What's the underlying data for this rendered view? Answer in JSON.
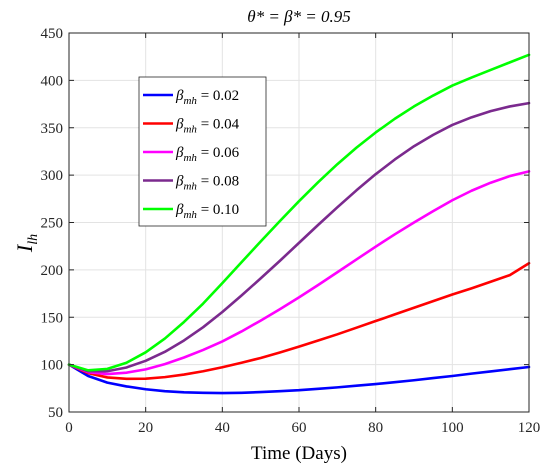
{
  "chart_data": {
    "type": "line",
    "title": "θ* = β* = 0.95",
    "xlabel": "Time (Days)",
    "ylabel_main": "I",
    "ylabel_sub": "lh",
    "xlim": [
      0,
      120
    ],
    "ylim": [
      50,
      450
    ],
    "xticks": [
      0,
      20,
      40,
      60,
      80,
      100,
      120
    ],
    "yticks": [
      50,
      100,
      150,
      200,
      250,
      300,
      350,
      400,
      450
    ],
    "grid": true,
    "legend_position": "top-left",
    "series": [
      {
        "name": "0.02",
        "color": "#0000ff",
        "x": [
          0,
          5,
          10,
          15,
          20,
          25,
          30,
          35,
          40,
          45,
          50,
          55,
          60,
          65,
          70,
          75,
          80,
          85,
          90,
          95,
          100,
          105,
          110,
          115,
          120
        ],
        "y": [
          100,
          88,
          81,
          77,
          74,
          72,
          70.8,
          70.2,
          70,
          70.3,
          71,
          72,
          73,
          74.5,
          76,
          77.8,
          79.5,
          81.5,
          83.5,
          85.8,
          88,
          90.5,
          92.8,
          95.2,
          97.5
        ]
      },
      {
        "name": "0.04",
        "color": "#ff0000",
        "x": [
          0,
          5,
          10,
          15,
          20,
          25,
          30,
          35,
          40,
          45,
          50,
          55,
          60,
          65,
          70,
          75,
          80,
          85,
          90,
          95,
          100,
          105,
          110,
          115,
          120
        ],
        "y": [
          100,
          91,
          86.5,
          85,
          85.2,
          86.8,
          89.5,
          93,
          97.2,
          102,
          107,
          112.8,
          119,
          125.5,
          132,
          139,
          146,
          153,
          160,
          167,
          174,
          180.5,
          187.5,
          194.5,
          207
        ]
      },
      {
        "name": "0.06",
        "color": "#ff00ff",
        "x": [
          0,
          5,
          10,
          15,
          20,
          25,
          30,
          35,
          40,
          45,
          50,
          55,
          60,
          65,
          70,
          75,
          80,
          85,
          90,
          95,
          100,
          105,
          110,
          115,
          120
        ],
        "y": [
          100,
          92,
          90,
          91.5,
          95,
          100.5,
          107.5,
          115.5,
          124.5,
          135,
          146.5,
          158.5,
          171,
          184,
          197.5,
          211,
          224.5,
          237.5,
          250,
          262,
          273.5,
          283.5,
          292,
          299,
          304
        ]
      },
      {
        "name": "0.08",
        "color": "#7b2a8e",
        "x": [
          0,
          5,
          10,
          15,
          20,
          25,
          30,
          35,
          40,
          45,
          50,
          55,
          60,
          65,
          70,
          75,
          80,
          85,
          90,
          95,
          100,
          105,
          110,
          115,
          120
        ],
        "y": [
          100,
          93,
          93,
          97,
          104,
          113.5,
          125.5,
          139.5,
          155.5,
          173,
          191,
          209.5,
          228.5,
          247.5,
          266,
          284,
          301,
          316.5,
          330.5,
          342.5,
          353,
          361,
          367.5,
          372.5,
          376
        ]
      },
      {
        "name": "0.10",
        "color": "#00ff00",
        "x": [
          0,
          5,
          10,
          15,
          20,
          25,
          30,
          35,
          40,
          45,
          50,
          55,
          60,
          65,
          70,
          75,
          80,
          85,
          90,
          95,
          100,
          105,
          110,
          115,
          120
        ],
        "y": [
          100,
          94,
          95.5,
          102,
          113,
          127.5,
          145,
          164.5,
          186,
          208,
          230,
          251.5,
          272.5,
          292.5,
          311.5,
          329,
          345,
          359.5,
          372.5,
          384,
          394.5,
          403,
          411,
          419,
          427
        ]
      }
    ]
  },
  "legend": {
    "symbol_main": "β",
    "symbol_sub": "mh",
    "equals": " = "
  }
}
